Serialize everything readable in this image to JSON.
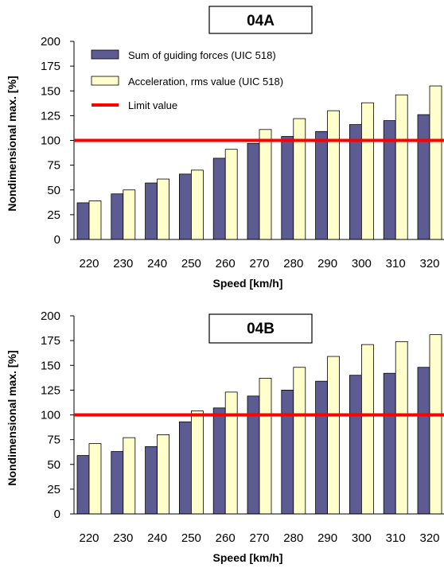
{
  "colors": {
    "guiding": "#5c5c93",
    "acceleration": "#ffffcc",
    "limit": "#ff0000",
    "axis": "#000000"
  },
  "chart_data": [
    {
      "type": "bar",
      "title": "04A",
      "xlabel": "Speed   [km/h]",
      "ylabel": "Nondimensional max.   [%]",
      "ylim": [
        0,
        200
      ],
      "yticks": [
        "0",
        "25",
        "50",
        "75",
        "100",
        "125",
        "150",
        "175",
        "200"
      ],
      "categories": [
        "220",
        "230",
        "240",
        "250",
        "260",
        "270",
        "280",
        "290",
        "300",
        "310",
        "320"
      ],
      "series": [
        {
          "name": "Sum of guiding forces (UIC 518)",
          "values": [
            37,
            46,
            57,
            66,
            82,
            97,
            104,
            109,
            116,
            120,
            126
          ]
        },
        {
          "name": "Acceleration, rms value (UIC 518)",
          "values": [
            39,
            50,
            61,
            70,
            91,
            111,
            122,
            130,
            138,
            146,
            155
          ]
        }
      ],
      "limit_line": {
        "name": "Limit value",
        "value": 100
      },
      "legend": "top-left",
      "grid": false
    },
    {
      "type": "bar",
      "title": "04B",
      "xlabel": "Speed   [km/h]",
      "ylabel": "Nondimensional max.   [%]",
      "ylim": [
        0,
        200
      ],
      "yticks": [
        "0",
        "25",
        "50",
        "75",
        "100",
        "125",
        "150",
        "175",
        "200"
      ],
      "categories": [
        "220",
        "230",
        "240",
        "250",
        "260",
        "270",
        "280",
        "290",
        "300",
        "310",
        "320"
      ],
      "series": [
        {
          "values": [
            59,
            63,
            68,
            93,
            107,
            119,
            125,
            134,
            140,
            142,
            148
          ]
        },
        {
          "values": [
            71,
            77,
            80,
            104,
            123,
            137,
            148,
            159,
            171,
            174,
            181
          ]
        }
      ],
      "limit_line": {
        "value": 100
      },
      "grid": false
    }
  ]
}
